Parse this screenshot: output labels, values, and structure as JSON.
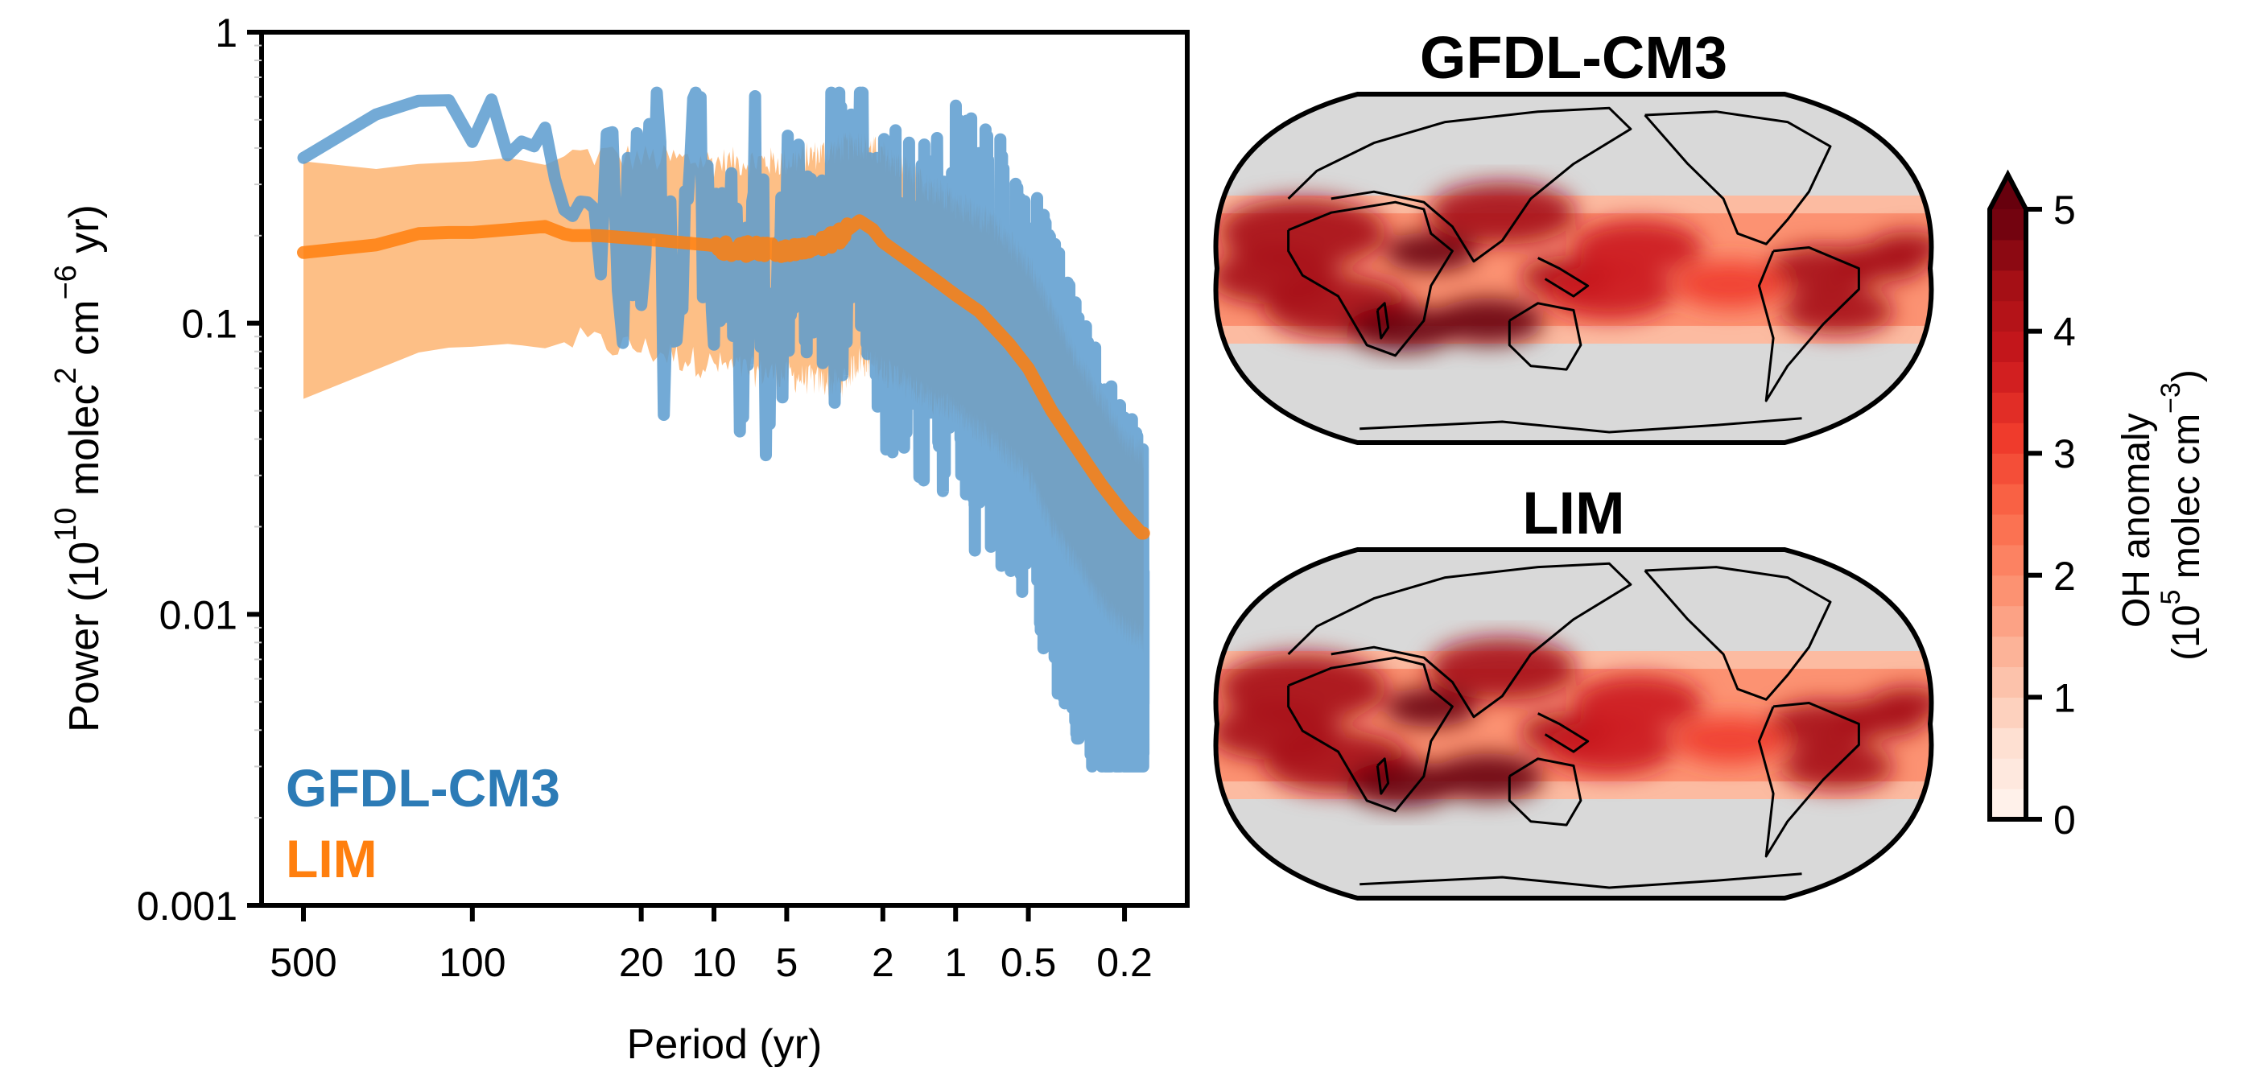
{
  "chart_data": [
    {
      "type": "line",
      "panel": "power-spectrum",
      "title": "",
      "xlabel": "Period (yr)",
      "ylabel": "Power (10^10 molec^2 cm^-6 yr)",
      "ylabel_parts": {
        "prefix": "Power (10",
        "sup1": "10",
        "mid1": " molec",
        "sup2": "2",
        "mid2": " cm",
        "sup3": "−6",
        "suffix": " yr)"
      },
      "xscale": "log",
      "yscale": "log",
      "xaxis_inverted": true,
      "xlim": [
        745,
        0.11
      ],
      "ylim": [
        0.001,
        1
      ],
      "x_ticks": [
        500,
        100,
        20,
        10,
        5,
        2,
        1,
        0.5,
        0.2
      ],
      "x_tick_labels": [
        "500",
        "100",
        "20",
        "10",
        "5",
        "2",
        "1",
        "0.5",
        "0.2"
      ],
      "y_ticks": [
        1,
        0.1,
        0.01,
        0.001
      ],
      "y_tick_labels": [
        "1",
        "0.1",
        "0.01",
        "0.001"
      ],
      "grid": false,
      "legend": {
        "placement": "bottom-left",
        "style": "colored-text",
        "entries": [
          {
            "label": "GFDL-CM3",
            "color": "#2c7bb6"
          },
          {
            "label": "LIM",
            "color": "#ff7f0e"
          }
        ]
      },
      "series": [
        {
          "name": "GFDL-CM3",
          "color": "#6fa8d6",
          "alpha": 0.9,
          "note": "single noisy periodogram; anchors are approximate envelope centres",
          "points": [
            [
              500,
              0.37
            ],
            [
              300,
              0.5
            ],
            [
              200,
              0.55
            ],
            [
              150,
              0.6
            ],
            [
              120,
              0.58
            ],
            [
              100,
              0.42
            ],
            [
              90,
              0.6
            ],
            [
              80,
              0.58
            ],
            [
              70,
              0.35
            ],
            [
              60,
              0.45
            ],
            [
              55,
              0.4
            ],
            [
              50,
              0.47
            ],
            [
              45,
              0.3
            ],
            [
              40,
              0.22
            ],
            [
              35,
              0.27
            ],
            [
              30,
              0.24
            ],
            [
              25,
              0.27
            ],
            [
              20,
              0.25
            ],
            [
              18,
              0.4
            ],
            [
              16,
              0.18
            ],
            [
              14,
              0.2
            ],
            [
              12,
              0.17
            ],
            [
              10,
              0.14
            ],
            [
              9,
              0.22
            ],
            [
              8,
              0.12
            ],
            [
              7,
              0.18
            ],
            [
              6,
              0.14
            ],
            [
              5,
              0.16
            ],
            [
              4.5,
              0.12
            ],
            [
              4,
              0.2
            ],
            [
              3.5,
              0.15
            ],
            [
              3,
              0.18
            ],
            [
              2.5,
              0.22
            ],
            [
              2,
              0.15
            ],
            [
              1.5,
              0.12
            ],
            [
              1.2,
              0.11
            ],
            [
              1,
              0.1
            ],
            [
              0.8,
              0.09
            ],
            [
              0.6,
              0.07
            ],
            [
              0.5,
              0.06
            ],
            [
              0.4,
              0.035
            ],
            [
              0.3,
              0.02
            ],
            [
              0.25,
              0.012
            ],
            [
              0.2,
              0.009
            ],
            [
              0.17,
              0.007
            ],
            [
              0.16,
              0.006
            ]
          ],
          "noise_band": {
            "low_min": 0.003,
            "high_max": 0.62
          }
        },
        {
          "name": "LIM",
          "color": "#ff7f0e",
          "kind": "mean-line",
          "points": [
            [
              500,
              0.175
            ],
            [
              300,
              0.175
            ],
            [
              200,
              0.2
            ],
            [
              150,
              0.205
            ],
            [
              100,
              0.205
            ],
            [
              70,
              0.21
            ],
            [
              50,
              0.215
            ],
            [
              40,
              0.2
            ],
            [
              30,
              0.2
            ],
            [
              20,
              0.195
            ],
            [
              10,
              0.185
            ],
            [
              8,
              0.18
            ],
            [
              6,
              0.18
            ],
            [
              5,
              0.175
            ],
            [
              4,
              0.18
            ],
            [
              3,
              0.2
            ],
            [
              2.5,
              0.225
            ],
            [
              2.2,
              0.21
            ],
            [
              2,
              0.19
            ],
            [
              1.5,
              0.16
            ],
            [
              1.2,
              0.14
            ],
            [
              1,
              0.125
            ],
            [
              0.8,
              0.11
            ],
            [
              0.6,
              0.085
            ],
            [
              0.5,
              0.07
            ],
            [
              0.4,
              0.05
            ],
            [
              0.3,
              0.035
            ],
            [
              0.25,
              0.028
            ],
            [
              0.2,
              0.022
            ],
            [
              0.17,
              0.019
            ],
            [
              0.16,
              0.019
            ]
          ]
        },
        {
          "name": "LIM range",
          "color": "#fdbf86",
          "kind": "shaded-band",
          "upper": [
            [
              500,
              0.36
            ],
            [
              300,
              0.33
            ],
            [
              200,
              0.35
            ],
            [
              100,
              0.36
            ],
            [
              70,
              0.37
            ],
            [
              50,
              0.35
            ],
            [
              40,
              0.38
            ],
            [
              30,
              0.38
            ],
            [
              20,
              0.37
            ],
            [
              10,
              0.36
            ],
            [
              5,
              0.36
            ],
            [
              3,
              0.4
            ],
            [
              2.5,
              0.42
            ],
            [
              2,
              0.38
            ],
            [
              1.5,
              0.32
            ],
            [
              1,
              0.26
            ],
            [
              0.7,
              0.22
            ],
            [
              0.5,
              0.16
            ],
            [
              0.4,
              0.11
            ],
            [
              0.3,
              0.07
            ],
            [
              0.25,
              0.055
            ],
            [
              0.2,
              0.04
            ],
            [
              0.16,
              0.035
            ]
          ],
          "lower": [
            [
              500,
              0.055
            ],
            [
              300,
              0.065
            ],
            [
              200,
              0.075
            ],
            [
              150,
              0.082
            ],
            [
              100,
              0.083
            ],
            [
              70,
              0.085
            ],
            [
              50,
              0.082
            ],
            [
              40,
              0.087
            ],
            [
              30,
              0.085
            ],
            [
              20,
              0.082
            ],
            [
              10,
              0.072
            ],
            [
              5,
              0.066
            ],
            [
              3,
              0.062
            ],
            [
              2.5,
              0.075
            ],
            [
              2,
              0.07
            ],
            [
              1.5,
              0.06
            ],
            [
              1,
              0.05
            ],
            [
              0.7,
              0.04
            ],
            [
              0.5,
              0.03
            ],
            [
              0.4,
              0.02
            ],
            [
              0.3,
              0.014
            ],
            [
              0.25,
              0.011
            ],
            [
              0.2,
              0.009
            ],
            [
              0.16,
              0.008
            ]
          ]
        }
      ]
    },
    {
      "type": "heatmap",
      "panel": "map-gfdl",
      "title": "GFDL-CM3",
      "projection": "Robinson (Pacific-centred)",
      "data_latitude_band": "tropics only (approx. 30°S–30°N); outside shown grey",
      "description": "OH anomaly map; maxima over Sahara/Sahel, East Africa, southern Africa, northern Australia, Maritime Continent and Amazon/Brazil; weaker values over the subtropical Pacific and edges of the band"
    },
    {
      "type": "heatmap",
      "panel": "map-lim",
      "title": "LIM",
      "projection": "Robinson (Pacific-centred)",
      "data_latitude_band": "tropics only (approx. 30°S–30°N); outside shown grey",
      "description": "pattern nearly identical to GFDL-CM3 panel"
    },
    {
      "type": "colorbar",
      "colormap": "Reds",
      "levels": 20,
      "range": [
        0,
        5
      ],
      "extend": "max",
      "ticks": [
        0,
        1,
        2,
        3,
        4,
        5
      ],
      "tick_labels": [
        "0",
        "1",
        "2",
        "3",
        "4",
        "5"
      ],
      "label_line1": "OH anomaly",
      "label_line2_parts": {
        "prefix": "(10",
        "sup1": "5",
        "mid": " molec cm",
        "sup2": "−3",
        "suffix": ")"
      }
    }
  ],
  "colors": {
    "map_background": "#d9d9d9",
    "coastline": "#000000",
    "axis": "#000000"
  }
}
